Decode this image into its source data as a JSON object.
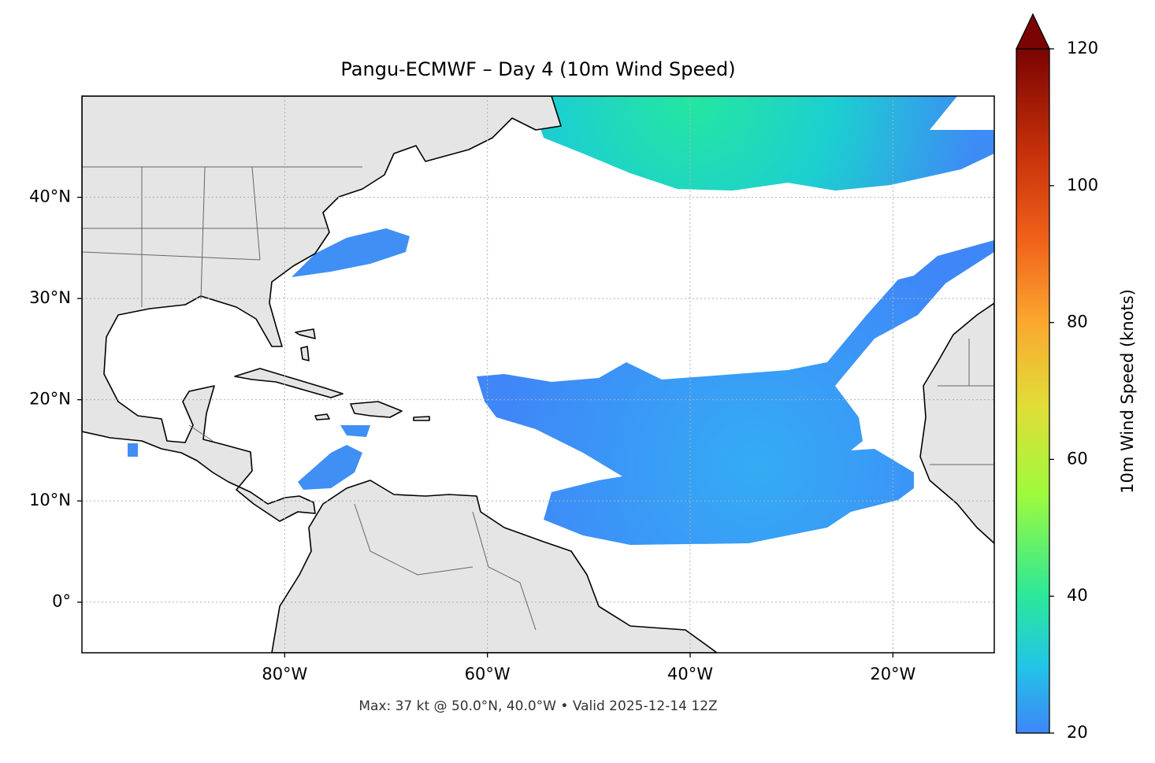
{
  "title": "Pangu-ECMWF – Day 4 (10m Wind Speed)",
  "footnote": "Max: 37 kt @ 50.0°N, 40.0°W • Valid 2025-12-14 12Z",
  "map": {
    "xlim": [
      -100,
      -10
    ],
    "ylim": [
      -5,
      50
    ],
    "grid": true,
    "xticks": [
      {
        "value": -80,
        "label": "80°W"
      },
      {
        "value": -60,
        "label": "60°W"
      },
      {
        "value": -40,
        "label": "40°W"
      },
      {
        "value": -20,
        "label": "20°W"
      }
    ],
    "yticks": [
      {
        "value": 0,
        "label": "0°"
      },
      {
        "value": 10,
        "label": "10°N"
      },
      {
        "value": 20,
        "label": "20°N"
      },
      {
        "value": 30,
        "label": "30°N"
      },
      {
        "value": 40,
        "label": "40°N"
      }
    ]
  },
  "colorbar": {
    "label": "10m Wind Speed (knots)",
    "lim": [
      20,
      120
    ],
    "ticks": [
      20,
      40,
      60,
      80,
      100,
      120
    ],
    "extend": "max"
  }
}
